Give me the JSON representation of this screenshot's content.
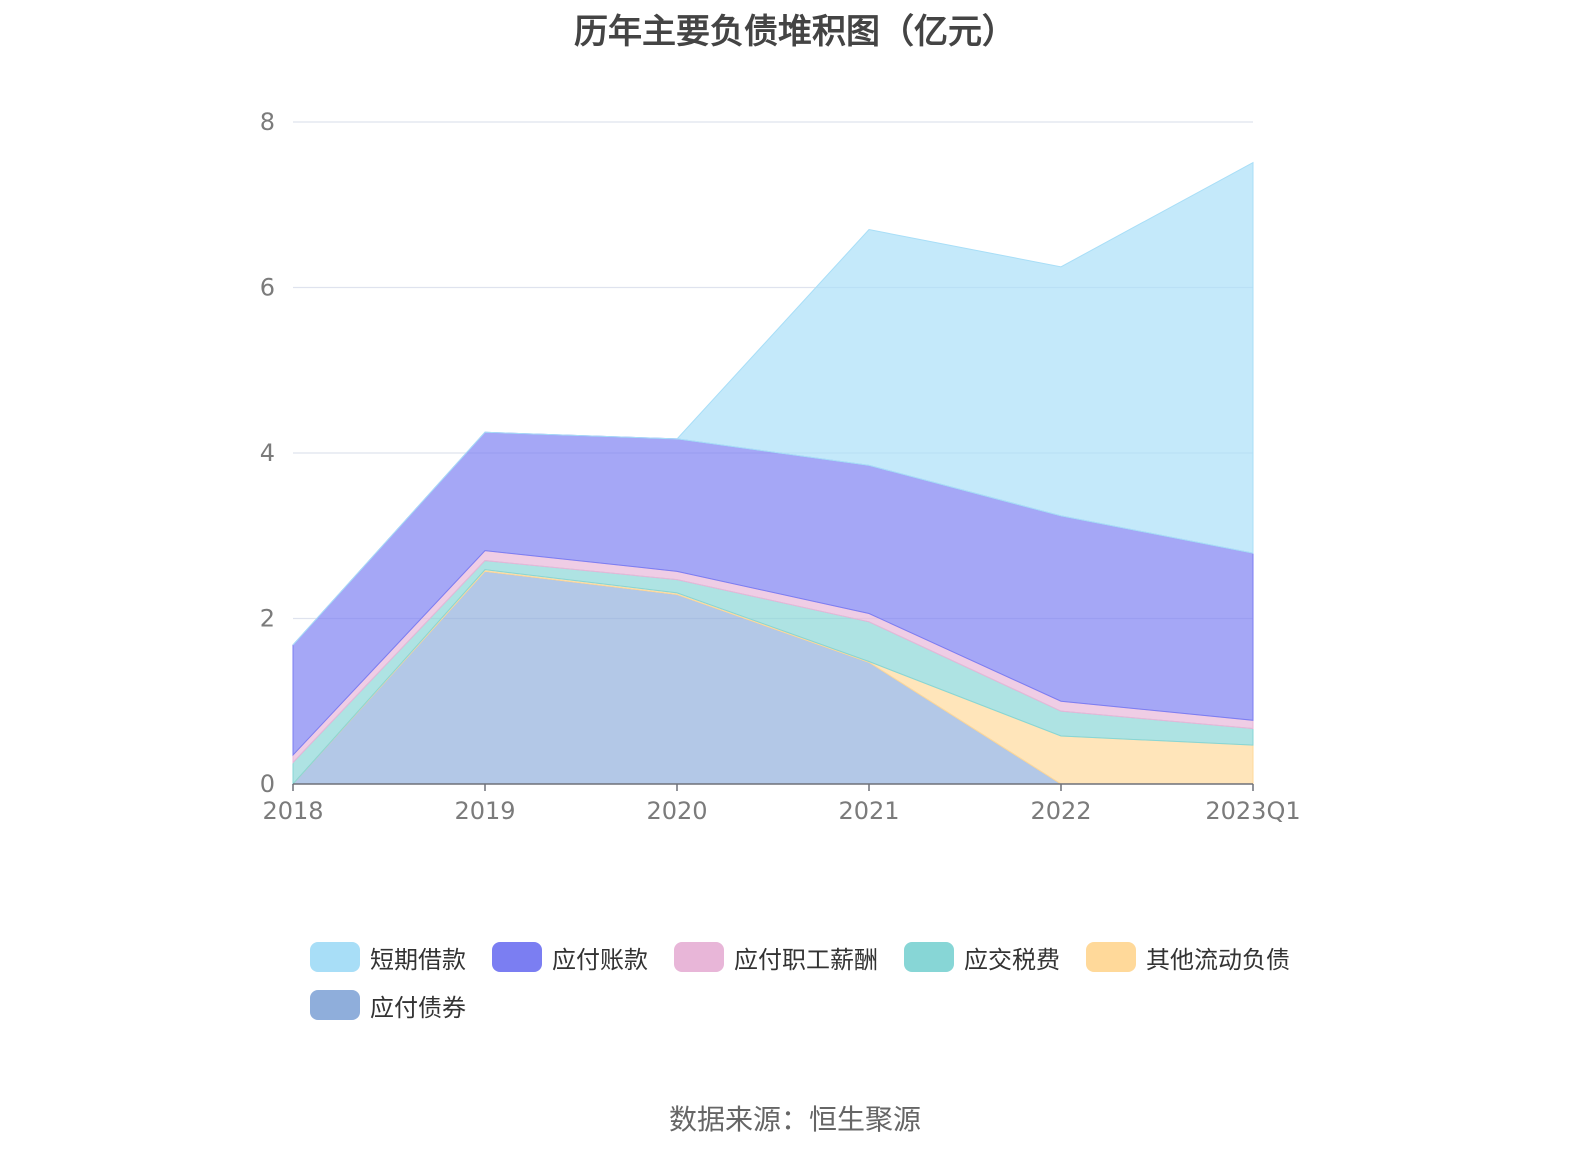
{
  "chart_data": {
    "type": "area",
    "stacked": true,
    "title": "历年主要负债堆积图（亿元）",
    "categories": [
      "2018",
      "2019",
      "2020",
      "2021",
      "2022",
      "2023Q1"
    ],
    "ylim": [
      0,
      8
    ],
    "yticks": [
      "0",
      "2",
      "4",
      "6",
      "8"
    ],
    "grid": true,
    "legend_position": "bottom",
    "series": [
      {
        "name": "应付债券",
        "color": "#8faedb",
        "values": [
          0.0,
          2.57,
          2.29,
          1.47,
          0.0,
          0.0
        ]
      },
      {
        "name": "其他流动负债",
        "color": "#ffd99a",
        "values": [
          0.0,
          0.02,
          0.02,
          0.01,
          0.58,
          0.47
        ]
      },
      {
        "name": "应交税费",
        "color": "#87d6d6",
        "values": [
          0.26,
          0.11,
          0.16,
          0.48,
          0.3,
          0.2
        ]
      },
      {
        "name": "应付职工薪酬",
        "color": "#e8b6d8",
        "values": [
          0.09,
          0.12,
          0.1,
          0.1,
          0.12,
          0.1
        ]
      },
      {
        "name": "应付账款",
        "color": "#7b7ef2",
        "values": [
          1.33,
          1.43,
          1.6,
          1.79,
          2.24,
          2.02
        ]
      },
      {
        "name": "短期借款",
        "color": "#a8def7",
        "values": [
          0.0,
          0.0,
          0.0,
          2.85,
          3.01,
          4.72
        ]
      }
    ]
  },
  "legend_order": [
    "短期借款",
    "应付账款",
    "应付职工薪酬",
    "应交税费",
    "其他流动负债",
    "应付债券"
  ],
  "source": "数据来源：恒生聚源"
}
